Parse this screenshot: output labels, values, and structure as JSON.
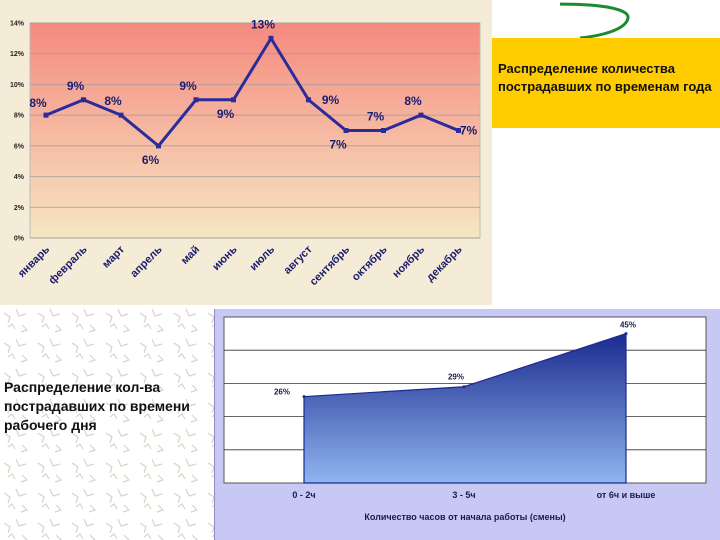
{
  "slide": {
    "title1": "Распределение количества пострадавших по временам года",
    "title2": "Распределение кол-ва пострадавших по времени рабочего дня"
  },
  "colors": {
    "plot1_top": "#f58a7f",
    "plot1_bottom": "#f6e6c3",
    "line1": "#2b2b9c",
    "title1_bg": "#ffcc00",
    "panel2_bg": "#c8c8f5",
    "area2_top": "#1b2a8f",
    "area2_bottom": "#8fb5ee"
  },
  "chart_data": [
    {
      "type": "line",
      "categories": [
        "январь",
        "февраль",
        "март",
        "апрель",
        "май",
        "июнь",
        "июль",
        "август",
        "сентябрь",
        "октябрь",
        "ноябрь",
        "декабрь"
      ],
      "values": [
        8,
        9,
        8,
        6,
        9,
        9,
        13,
        9,
        7,
        7,
        8,
        7
      ],
      "data_labels": [
        "8%",
        "9%",
        "8%",
        "6%",
        "9%",
        "9%",
        "13%",
        "9%",
        "7%",
        "7%",
        "8%",
        "7%"
      ],
      "yticks": [
        "0%",
        "2%",
        "4%",
        "6%",
        "8%",
        "10%",
        "12%",
        "14%"
      ],
      "ylim": [
        0,
        14
      ],
      "grid": true
    },
    {
      "type": "area",
      "categories": [
        "0 - 2ч",
        "3 - 5ч",
        "от 6ч и выше"
      ],
      "values": [
        26,
        29,
        45
      ],
      "data_labels": [
        "26%",
        "29%",
        "45%"
      ],
      "xlabel": "Количество часов от начала работы (смены)",
      "ylim": [
        0,
        50
      ],
      "grid": true
    }
  ]
}
